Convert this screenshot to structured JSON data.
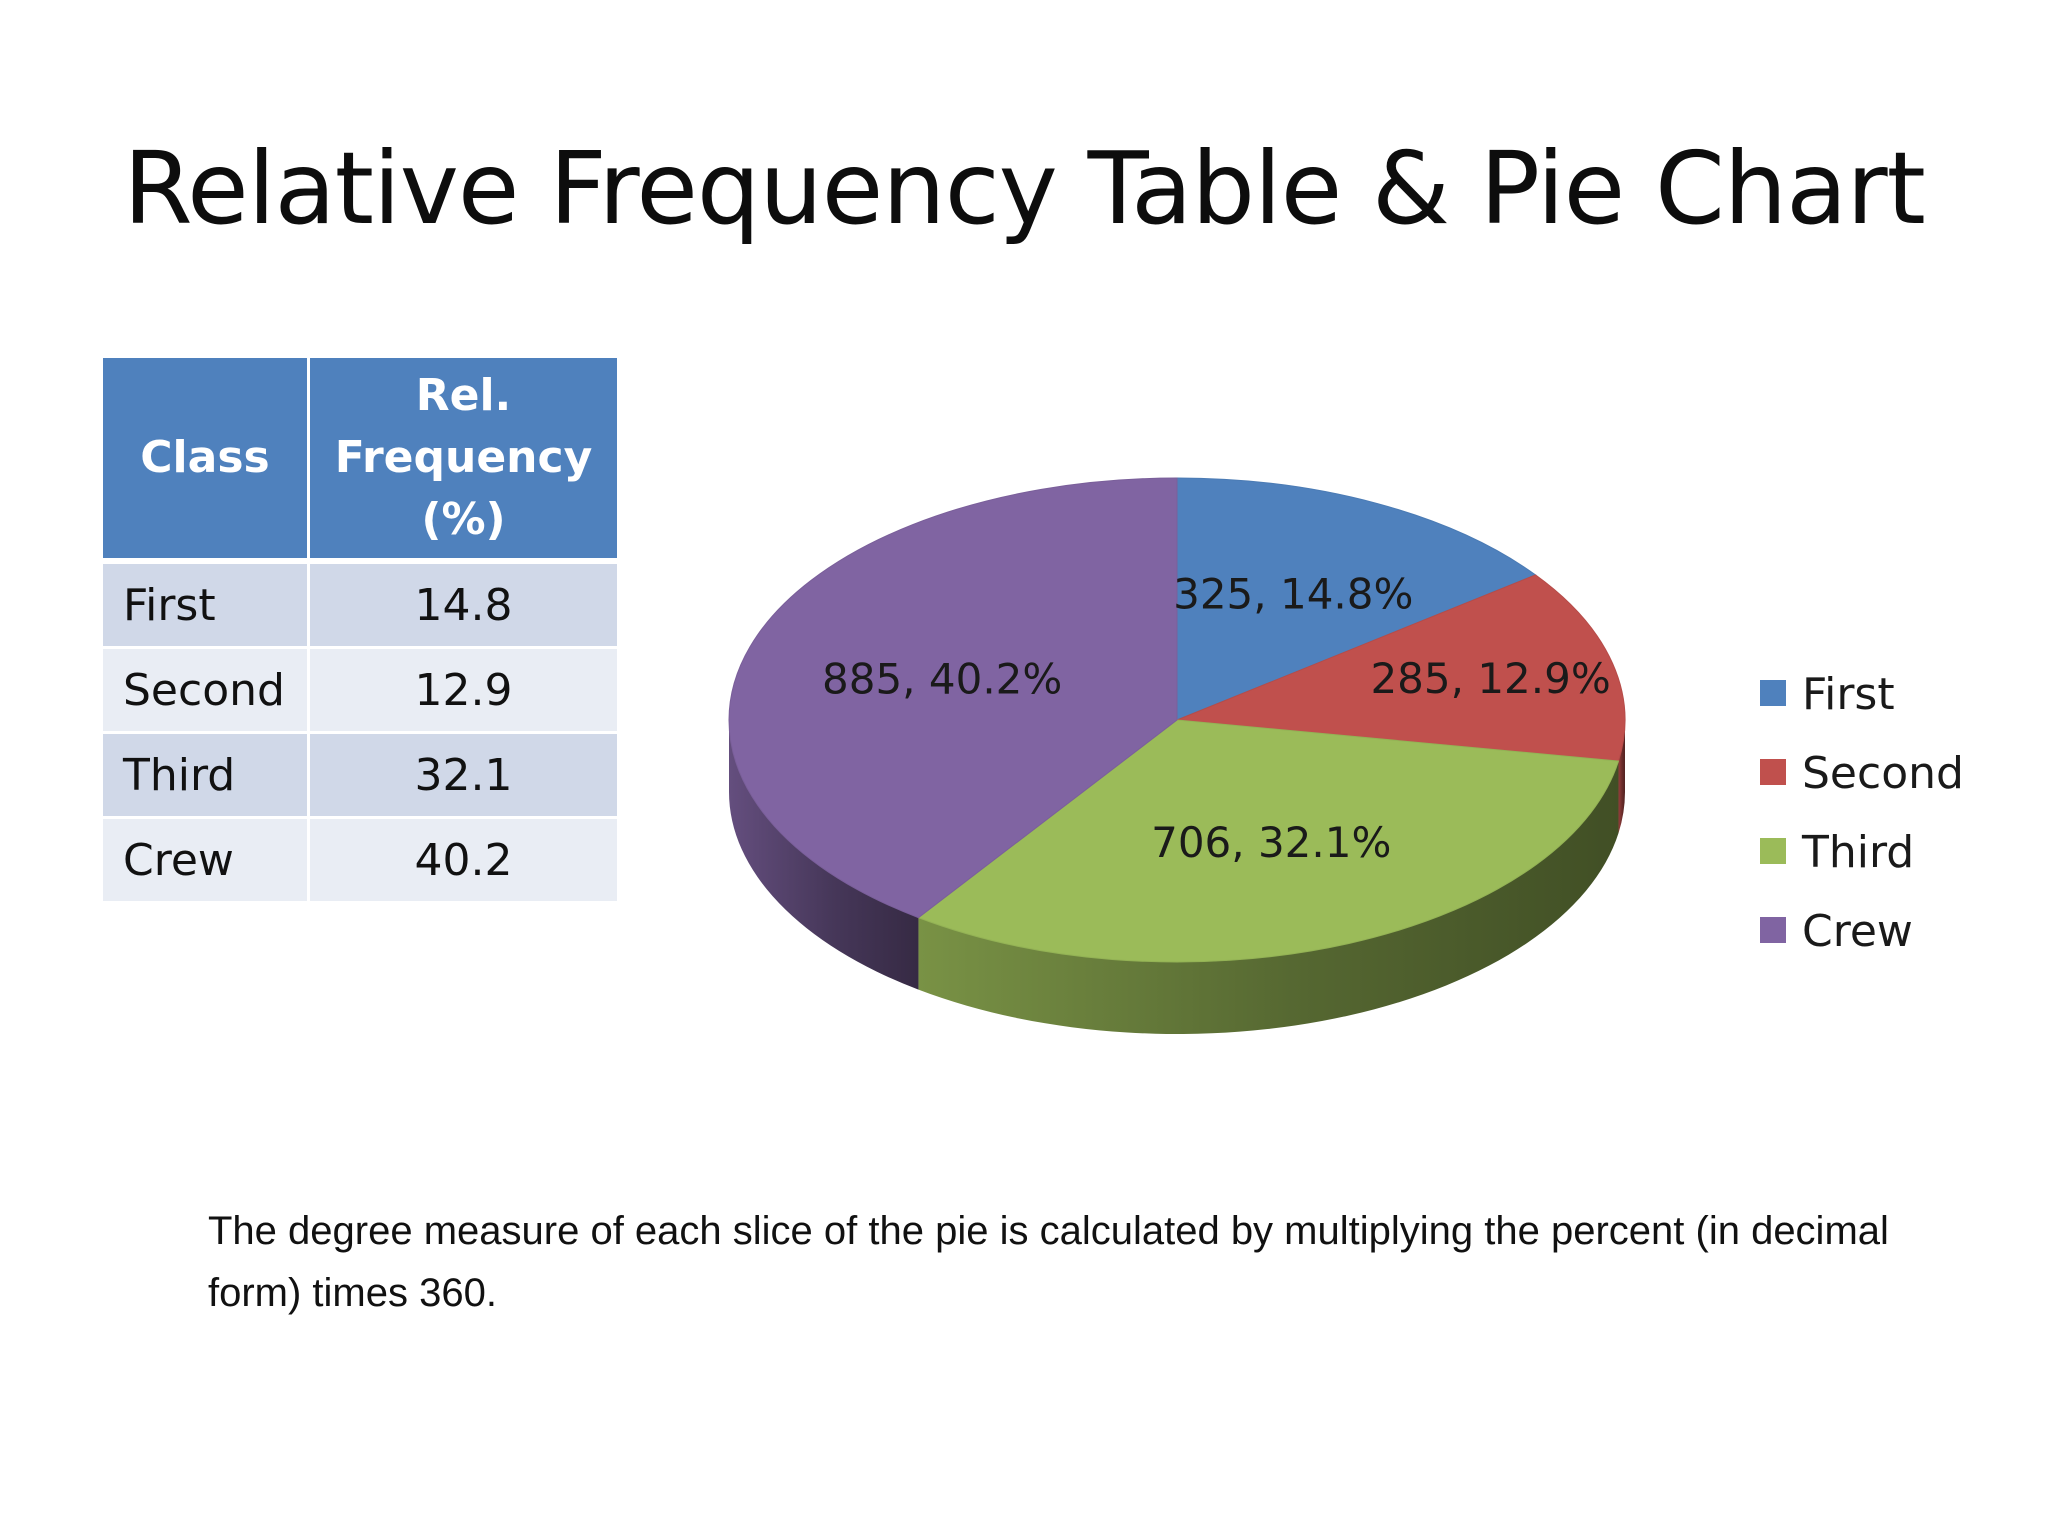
{
  "slide": {
    "title": "Relative Frequency Table & Pie Chart",
    "footnote": "The degree measure of each slice of the pie is calculated by multiplying the percent (in decimal form) times 360."
  },
  "table": {
    "headers": [
      "Class",
      "Rel. Frequency (%)"
    ],
    "rows": [
      [
        "First",
        "14.8"
      ],
      [
        "Second",
        "12.9"
      ],
      [
        "Third",
        "32.1"
      ],
      [
        "Crew",
        "40.2"
      ]
    ]
  },
  "chart_data": {
    "type": "pie",
    "style": "3d",
    "categories": [
      "First",
      "Second",
      "Third",
      "Crew"
    ],
    "values": [
      325,
      285,
      706,
      885
    ],
    "percents": [
      14.8,
      12.9,
      32.1,
      40.2
    ],
    "data_labels": [
      "325, 14.8%",
      "285, 12.9%",
      "706, 32.1%",
      "885, 40.2%"
    ],
    "colors": [
      "#4f81bd",
      "#c0504d",
      "#9bbb59",
      "#8064a2"
    ],
    "legend": "right"
  }
}
